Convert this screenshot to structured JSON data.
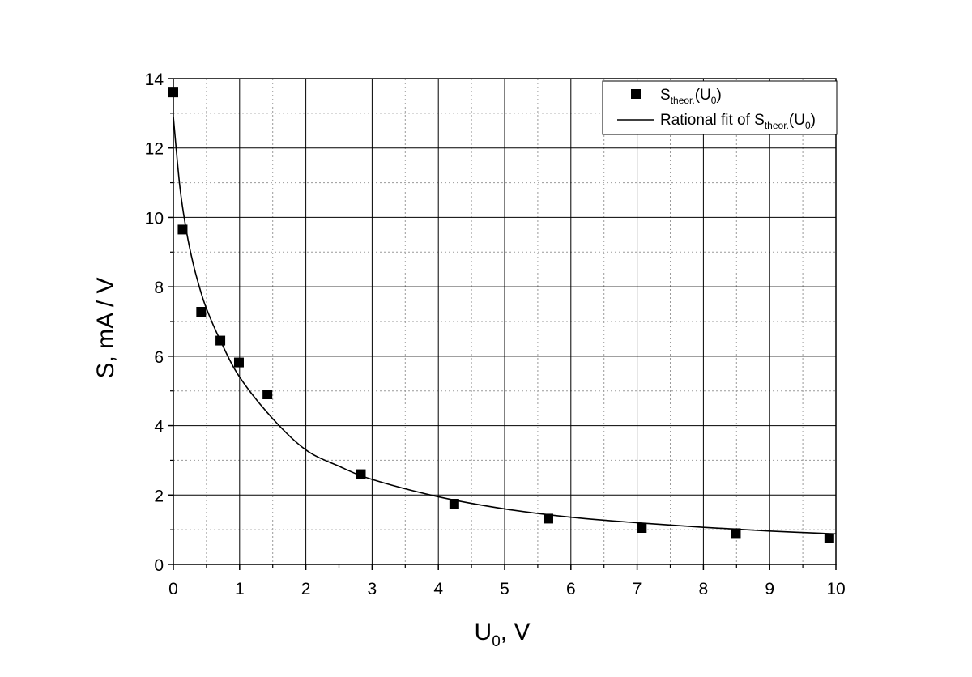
{
  "chart_data": {
    "type": "scatter",
    "title": "",
    "xlabel": {
      "main": "U",
      "sub": "0",
      "rest": ", V"
    },
    "ylabel": "S, mA / V",
    "xlim": [
      0,
      10
    ],
    "ylim": [
      0,
      14
    ],
    "x_ticks": [
      "0",
      "1",
      "2",
      "3",
      "4",
      "5",
      "6",
      "7",
      "8",
      "9",
      "10"
    ],
    "y_ticks": [
      "0",
      "2",
      "4",
      "6",
      "8",
      "10",
      "12",
      "14"
    ],
    "grid": "major solid, minor dotted",
    "legend_position": "top-right",
    "series": [
      {
        "name": {
          "main": "S",
          "sub": "theor.",
          "rest_main": "(U",
          "rest_sub": "0",
          "close": ")"
        },
        "kind": "points",
        "marker": "square",
        "color": "#000000",
        "points": [
          [
            0.0,
            13.6
          ],
          [
            0.14,
            9.65
          ],
          [
            0.42,
            7.28
          ],
          [
            0.71,
            6.45
          ],
          [
            0.99,
            5.82
          ],
          [
            1.42,
            4.9
          ],
          [
            2.83,
            2.6
          ],
          [
            4.24,
            1.75
          ],
          [
            5.66,
            1.32
          ],
          [
            7.07,
            1.05
          ],
          [
            8.49,
            0.9
          ],
          [
            9.9,
            0.75
          ]
        ]
      },
      {
        "name": {
          "prefix": "Rational fit of S",
          "sub": "theor.",
          "rest_main": "(U",
          "rest_sub": "0",
          "close": ")"
        },
        "kind": "line",
        "color": "#000000",
        "points": [
          [
            0.0,
            12.9
          ],
          [
            0.1,
            10.86
          ],
          [
            0.2,
            9.58
          ],
          [
            0.3,
            8.66
          ],
          [
            0.4,
            7.95
          ],
          [
            0.5,
            7.37
          ],
          [
            0.7,
            6.49
          ],
          [
            1.0,
            5.4
          ],
          [
            1.5,
            4.2
          ],
          [
            2.0,
            3.3
          ],
          [
            2.5,
            2.83
          ],
          [
            3.0,
            2.45
          ],
          [
            4.0,
            1.95
          ],
          [
            5.0,
            1.6
          ],
          [
            6.0,
            1.36
          ],
          [
            7.0,
            1.2
          ],
          [
            8.0,
            1.07
          ],
          [
            9.0,
            0.96
          ],
          [
            10.0,
            0.88
          ]
        ]
      }
    ]
  }
}
